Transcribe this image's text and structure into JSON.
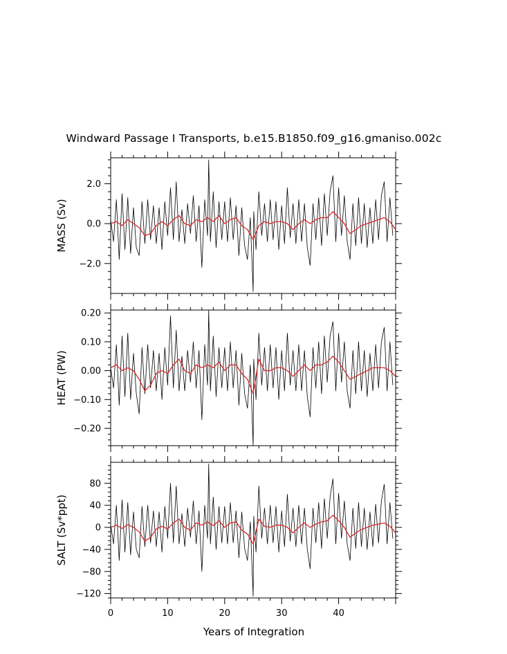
{
  "title": "Windward Passage I Transports, b.e15.B1850.f09_g16.gmaniso.002c",
  "colors": {
    "monthly": "#000000",
    "smoothed": "#d62728",
    "frame": "#000000"
  },
  "chart_data": [
    {
      "type": "line",
      "panel": "mass",
      "ylabel": "MASS (Sv)",
      "xlabel": "",
      "xlim": [
        0,
        50
      ],
      "ylim": [
        -3.5,
        3.3
      ],
      "yticks": [
        2.0,
        0.0,
        -2.0
      ],
      "ytick_labels": [
        "2.0",
        "0.0",
        "−2.0"
      ],
      "grid": false,
      "series": [
        {
          "role": "monthly",
          "x": [
            0,
            0.5,
            1,
            1.5,
            2,
            2.5,
            3,
            3.5,
            4,
            4.5,
            5,
            5.5,
            6,
            6.5,
            7,
            7.5,
            8,
            8.5,
            9,
            9.5,
            10,
            10.5,
            11,
            11.5,
            12,
            12.5,
            13,
            13.5,
            14,
            14.5,
            15,
            15.5,
            16,
            16.5,
            17,
            17.2,
            17.5,
            18,
            18.5,
            19,
            19.5,
            20,
            20.5,
            21,
            21.5,
            22,
            22.5,
            23,
            23.5,
            24,
            24.5,
            25,
            25.1,
            25.5,
            26,
            26.5,
            27,
            27.5,
            28,
            28.5,
            29,
            29.5,
            30,
            30.5,
            31,
            31.5,
            32,
            32.5,
            33,
            33.5,
            34,
            34.5,
            35,
            35.5,
            36,
            36.5,
            37,
            37.5,
            38,
            38.5,
            39,
            39.5,
            40,
            40.5,
            41,
            41.5,
            42,
            42.5,
            43,
            43.5,
            44,
            44.5,
            45,
            45.5,
            46,
            46.5,
            47,
            47.5,
            48,
            48.5,
            49,
            49.5
          ],
          "y": [
            0.2,
            -0.9,
            1.2,
            -1.8,
            1.5,
            -1.3,
            1.3,
            -1.5,
            0.8,
            -1.2,
            -1.6,
            1.1,
            -1.0,
            1.2,
            -0.8,
            0.9,
            -1.0,
            0.8,
            -1.3,
            1.1,
            -0.6,
            1.8,
            -0.8,
            2.1,
            -0.9,
            0.7,
            -1.0,
            1.0,
            -0.5,
            1.4,
            -0.9,
            0.9,
            -2.2,
            1.2,
            -0.6,
            3.2,
            -0.9,
            1.6,
            -1.2,
            1.1,
            -0.8,
            1.1,
            -0.9,
            1.3,
            -0.8,
            0.9,
            -1.6,
            0.8,
            -1.1,
            -1.8,
            0.3,
            -3.4,
            0.6,
            -1.3,
            1.6,
            -0.6,
            1.0,
            -0.9,
            1.2,
            -0.8,
            1.1,
            -1.3,
            0.9,
            -1.0,
            1.8,
            -0.7,
            1.0,
            -1.0,
            1.2,
            -0.9,
            1.0,
            -1.2,
            -2.1,
            1.0,
            -0.8,
            1.3,
            -1.1,
            1.5,
            -0.6,
            1.6,
            2.4,
            -0.9,
            1.8,
            -0.6,
            1.4,
            -0.9,
            -1.8,
            1.0,
            -1.1,
            1.3,
            -1.0,
            1.0,
            -1.2,
            0.8,
            -1.0,
            1.2,
            -0.8,
            1.4,
            2.1,
            -0.9,
            1.3,
            -0.6
          ]
        },
        {
          "role": "smoothed",
          "x": [
            0,
            1,
            2,
            3,
            4,
            5,
            6,
            7,
            8,
            9,
            10,
            11,
            12,
            13,
            14,
            15,
            16,
            17,
            18,
            19,
            20,
            21,
            22,
            23,
            24,
            25,
            26,
            27,
            28,
            29,
            30,
            31,
            32,
            33,
            34,
            35,
            36,
            37,
            38,
            39,
            40,
            41,
            42,
            43,
            44,
            45,
            46,
            47,
            48,
            49,
            50
          ],
          "y": [
            0.0,
            0.1,
            -0.1,
            0.2,
            0.0,
            -0.2,
            -0.6,
            -0.5,
            -0.1,
            0.1,
            -0.1,
            0.2,
            0.4,
            0.0,
            -0.1,
            0.2,
            0.1,
            0.3,
            0.1,
            0.4,
            0.0,
            0.2,
            0.3,
            -0.1,
            -0.3,
            -0.8,
            -0.1,
            0.1,
            0.0,
            0.1,
            0.1,
            0.0,
            -0.3,
            0.0,
            0.2,
            0.0,
            0.2,
            0.3,
            0.3,
            0.6,
            0.3,
            0.0,
            -0.5,
            -0.3,
            -0.1,
            0.0,
            0.1,
            0.2,
            0.3,
            0.1,
            -0.3
          ]
        }
      ]
    },
    {
      "type": "line",
      "panel": "heat",
      "ylabel": "HEAT (PW)",
      "xlabel": "",
      "xlim": [
        0,
        50
      ],
      "ylim": [
        -0.26,
        0.21
      ],
      "yticks": [
        0.2,
        0.1,
        0.0,
        -0.1,
        -0.2
      ],
      "ytick_labels": [
        "0.20",
        "0.10",
        "0.00",
        "−0.10",
        "−0.20"
      ],
      "grid": false,
      "series": [
        {
          "role": "monthly",
          "x": [
            0,
            0.5,
            1,
            1.5,
            2,
            2.5,
            3,
            3.5,
            4,
            4.5,
            5,
            5.5,
            6,
            6.5,
            7,
            7.5,
            8,
            8.5,
            9,
            9.5,
            10,
            10.5,
            11,
            11.5,
            12,
            12.5,
            13,
            13.5,
            14,
            14.5,
            15,
            15.5,
            16,
            16.5,
            17,
            17.2,
            17.5,
            18,
            18.5,
            19,
            19.5,
            20,
            20.5,
            21,
            21.5,
            22,
            22.5,
            23,
            23.5,
            24,
            24.5,
            25,
            25.1,
            25.5,
            26,
            26.5,
            27,
            27.5,
            28,
            28.5,
            29,
            29.5,
            30,
            30.5,
            31,
            31.5,
            32,
            32.5,
            33,
            33.5,
            34,
            34.5,
            35,
            35.5,
            36,
            36.5,
            37,
            37.5,
            38,
            38.5,
            39,
            39.5,
            40,
            40.5,
            41,
            41.5,
            42,
            42.5,
            43,
            43.5,
            44,
            44.5,
            45,
            45.5,
            46,
            46.5,
            47,
            47.5,
            48,
            48.5,
            49,
            49.5
          ],
          "y": [
            0.01,
            -0.06,
            0.09,
            -0.12,
            0.12,
            -0.09,
            0.13,
            -0.1,
            0.06,
            -0.08,
            -0.15,
            0.08,
            -0.08,
            0.09,
            -0.06,
            0.07,
            -0.07,
            0.06,
            -0.1,
            0.08,
            -0.05,
            0.19,
            -0.06,
            0.14,
            -0.07,
            0.05,
            -0.07,
            0.07,
            -0.04,
            0.1,
            -0.06,
            0.07,
            -0.17,
            0.09,
            -0.05,
            0.21,
            -0.07,
            0.12,
            -0.09,
            0.08,
            -0.06,
            0.08,
            -0.07,
            0.1,
            -0.06,
            0.07,
            -0.12,
            0.06,
            -0.08,
            -0.13,
            0.02,
            -0.26,
            0.04,
            -0.1,
            0.13,
            -0.05,
            0.08,
            -0.07,
            0.09,
            -0.06,
            0.08,
            -0.1,
            0.07,
            -0.07,
            0.13,
            -0.05,
            0.07,
            -0.07,
            0.09,
            -0.07,
            0.07,
            -0.09,
            -0.16,
            0.08,
            -0.06,
            0.1,
            -0.08,
            0.12,
            -0.04,
            0.12,
            0.17,
            -0.07,
            0.13,
            -0.04,
            0.1,
            -0.07,
            -0.13,
            0.07,
            -0.08,
            0.1,
            -0.07,
            0.07,
            -0.09,
            0.06,
            -0.07,
            0.09,
            -0.06,
            0.1,
            0.15,
            -0.07,
            0.1,
            -0.05
          ]
        },
        {
          "role": "smoothed",
          "x": [
            0,
            1,
            2,
            3,
            4,
            5,
            6,
            7,
            8,
            9,
            10,
            11,
            12,
            13,
            14,
            15,
            16,
            17,
            18,
            19,
            20,
            21,
            22,
            23,
            24,
            25,
            26,
            27,
            28,
            29,
            30,
            31,
            32,
            33,
            34,
            35,
            36,
            37,
            38,
            39,
            40,
            41,
            42,
            43,
            44,
            45,
            46,
            47,
            48,
            49,
            50
          ],
          "y": [
            0.01,
            0.02,
            0.0,
            0.01,
            0.0,
            -0.03,
            -0.07,
            -0.05,
            -0.01,
            0.0,
            -0.01,
            0.02,
            0.04,
            0.0,
            -0.01,
            0.02,
            0.01,
            0.02,
            0.01,
            0.03,
            0.0,
            0.02,
            0.02,
            -0.01,
            -0.03,
            -0.08,
            0.04,
            0.0,
            0.0,
            0.01,
            0.01,
            0.0,
            -0.02,
            0.0,
            0.02,
            0.0,
            0.02,
            0.02,
            0.03,
            0.05,
            0.03,
            0.0,
            -0.03,
            -0.02,
            -0.01,
            0.0,
            0.01,
            0.01,
            0.01,
            0.0,
            -0.02
          ]
        }
      ]
    },
    {
      "type": "line",
      "panel": "salt",
      "ylabel": "SALT (Sv*ppt)",
      "xlabel": "Years of Integration",
      "xlim": [
        0,
        50
      ],
      "xticks": [
        0,
        10,
        20,
        30,
        40
      ],
      "xtick_labels": [
        "0",
        "10",
        "20",
        "30",
        "40"
      ],
      "ylim": [
        -128,
        118
      ],
      "yticks": [
        80,
        40,
        0,
        -40,
        -80,
        -120
      ],
      "ytick_labels": [
        "80",
        "40",
        "0",
        "−40",
        "−80",
        "−120"
      ],
      "grid": false,
      "series": [
        {
          "role": "monthly",
          "x": [
            0,
            0.5,
            1,
            1.5,
            2,
            2.5,
            3,
            3.5,
            4,
            4.5,
            5,
            5.5,
            6,
            6.5,
            7,
            7.5,
            8,
            8.5,
            9,
            9.5,
            10,
            10.5,
            11,
            11.5,
            12,
            12.5,
            13,
            13.5,
            14,
            14.5,
            15,
            15.5,
            16,
            16.5,
            17,
            17.2,
            17.5,
            18,
            18.5,
            19,
            19.5,
            20,
            20.5,
            21,
            21.5,
            22,
            22.5,
            23,
            23.5,
            24,
            24.5,
            25,
            25.1,
            25.5,
            26,
            26.5,
            27,
            27.5,
            28,
            28.5,
            29,
            29.5,
            30,
            30.5,
            31,
            31.5,
            32,
            32.5,
            33,
            33.5,
            34,
            34.5,
            35,
            35.5,
            36,
            36.5,
            37,
            37.5,
            38,
            38.5,
            39,
            39.5,
            40,
            40.5,
            41,
            41.5,
            42,
            42.5,
            43,
            43.5,
            44,
            44.5,
            45,
            45.5,
            46,
            46.5,
            47,
            47.5,
            48,
            48.5,
            49,
            49.5
          ],
          "y": [
            5,
            -30,
            40,
            -60,
            50,
            -45,
            45,
            -50,
            28,
            -40,
            -55,
            38,
            -35,
            40,
            -28,
            30,
            -35,
            28,
            -45,
            38,
            -20,
            80,
            -28,
            75,
            -30,
            25,
            -35,
            35,
            -18,
            48,
            -30,
            30,
            -80,
            40,
            -20,
            115,
            -30,
            55,
            -40,
            38,
            -28,
            38,
            -30,
            45,
            -28,
            30,
            -55,
            28,
            -38,
            -60,
            10,
            -125,
            20,
            -45,
            75,
            -20,
            35,
            -30,
            40,
            -28,
            38,
            -45,
            30,
            -35,
            60,
            -25,
            35,
            -35,
            40,
            -30,
            35,
            -40,
            -75,
            35,
            -28,
            45,
            -38,
            52,
            -20,
            55,
            88,
            -30,
            62,
            -20,
            48,
            -30,
            -60,
            35,
            -38,
            45,
            -35,
            35,
            -40,
            28,
            -35,
            42,
            -28,
            48,
            78,
            -30,
            45,
            -20
          ]
        },
        {
          "role": "smoothed",
          "x": [
            0,
            1,
            2,
            3,
            4,
            5,
            6,
            7,
            8,
            9,
            10,
            11,
            12,
            13,
            14,
            15,
            16,
            17,
            18,
            19,
            20,
            21,
            22,
            23,
            24,
            25,
            26,
            27,
            28,
            29,
            30,
            31,
            32,
            33,
            34,
            35,
            36,
            37,
            38,
            39,
            40,
            41,
            42,
            43,
            44,
            45,
            46,
            47,
            48,
            49,
            50
          ],
          "y": [
            0,
            4,
            -2,
            5,
            0,
            -8,
            -25,
            -18,
            -3,
            2,
            -3,
            8,
            15,
            0,
            -5,
            8,
            4,
            10,
            3,
            12,
            0,
            8,
            10,
            -5,
            -12,
            -30,
            15,
            2,
            0,
            4,
            4,
            0,
            -10,
            0,
            8,
            0,
            6,
            10,
            12,
            22,
            12,
            0,
            -18,
            -10,
            -4,
            0,
            4,
            6,
            8,
            2,
            -10
          ]
        }
      ]
    }
  ]
}
